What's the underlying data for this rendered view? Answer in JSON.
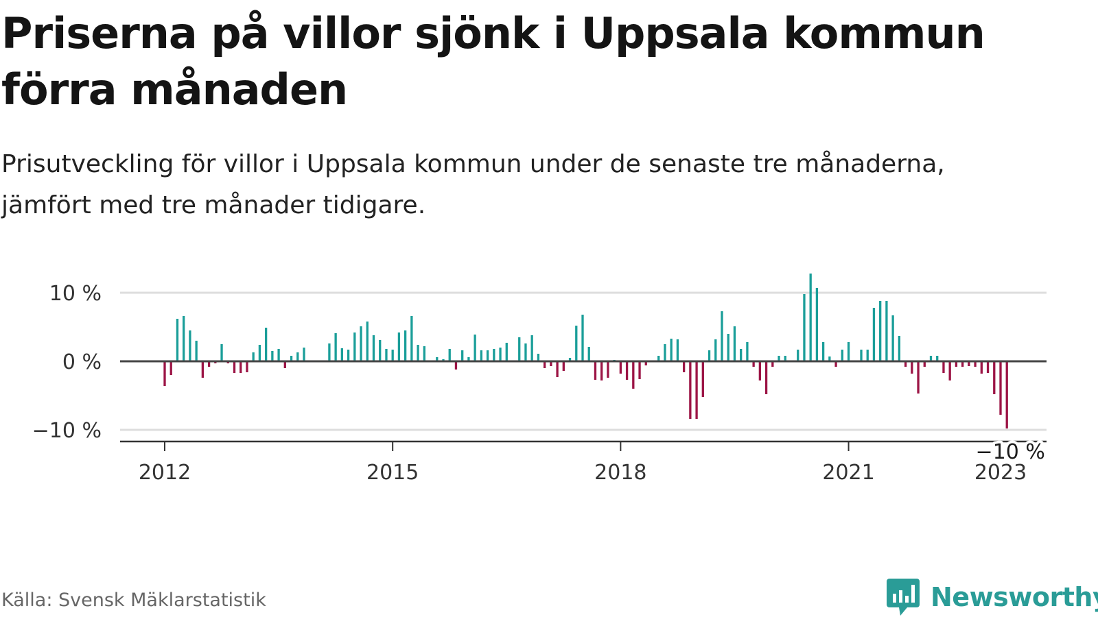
{
  "title": "Priserna på villor sjönk i Uppsala kommun förra månaden",
  "subtitle": "Prisutveckling för villor i Uppsala kommun under de senaste tre månaderna, jämfört med tre månader tidigare.",
  "source": "Källa: Svensk Mäklarstatistik",
  "brand": {
    "name": "Newsworthy",
    "color": "#2a9c97",
    "icon": "newsworthy-chart-bubble-icon"
  },
  "colors": {
    "positive": "#1a9e99",
    "negative": "#9c1445",
    "zero_line": "#444444",
    "grid": "#dddddd"
  },
  "chart_data": {
    "type": "bar",
    "unit": "%",
    "title": "",
    "xlabel": "",
    "ylabel": "",
    "ylim": [
      -11.5,
      12.5
    ],
    "y_ticks": [
      {
        "value": 10,
        "label": "10 %"
      },
      {
        "value": 0,
        "label": "0 %"
      },
      {
        "value": -10,
        "label": "−10 %"
      }
    ],
    "x_ticks": [
      {
        "value": "2012-01",
        "label": "2012"
      },
      {
        "value": "2015-01",
        "label": "2015"
      },
      {
        "value": "2018-01",
        "label": "2018"
      },
      {
        "value": "2021-01",
        "label": "2021"
      },
      {
        "value": "2023-01",
        "label": "2023"
      }
    ],
    "x_range": [
      "2011-07",
      "2023-07"
    ],
    "start": "2012-01",
    "values": [
      -3.6,
      -2.0,
      6.2,
      6.6,
      4.5,
      3.0,
      -2.4,
      -0.8,
      -0.3,
      2.5,
      -0.3,
      -1.7,
      -1.7,
      -1.6,
      1.3,
      2.4,
      4.9,
      1.5,
      1.8,
      -1.0,
      0.8,
      1.3,
      2.0,
      null,
      null,
      null,
      2.6,
      4.1,
      1.9,
      1.7,
      4.2,
      5.1,
      5.8,
      3.8,
      3.1,
      1.8,
      1.7,
      4.2,
      4.5,
      6.6,
      2.4,
      2.2,
      null,
      0.6,
      0.3,
      1.8,
      -1.2,
      1.6,
      0.6,
      3.9,
      1.6,
      1.6,
      1.8,
      2.0,
      2.7,
      0.1,
      3.5,
      2.6,
      3.8,
      1.1,
      -1.0,
      -0.7,
      -2.3,
      -1.4,
      0.5,
      5.2,
      6.8,
      2.1,
      -2.7,
      -2.8,
      -2.4,
      0.2,
      -1.8,
      -2.7,
      -4.0,
      -2.6,
      -0.6,
      0.1,
      0.8,
      2.5,
      3.3,
      3.2,
      -1.6,
      -8.4,
      -8.4,
      -5.2,
      1.6,
      3.2,
      7.3,
      4.0,
      5.1,
      1.8,
      2.8,
      -0.8,
      -2.8,
      -4.8,
      -0.8,
      0.8,
      0.8,
      null,
      1.7,
      9.8,
      12.8,
      10.7,
      2.8,
      0.7,
      -0.8,
      1.7,
      2.8,
      null,
      1.7,
      1.7,
      7.8,
      8.8,
      8.8,
      6.7,
      3.7,
      -0.8,
      -1.8,
      -4.7,
      -0.8,
      0.8,
      0.8,
      -1.7,
      -2.8,
      -0.8,
      -0.8,
      -0.7,
      -0.8,
      -1.8,
      -1.7,
      -4.8,
      -7.8,
      -9.8
    ],
    "last_value_label": "−10 %"
  }
}
